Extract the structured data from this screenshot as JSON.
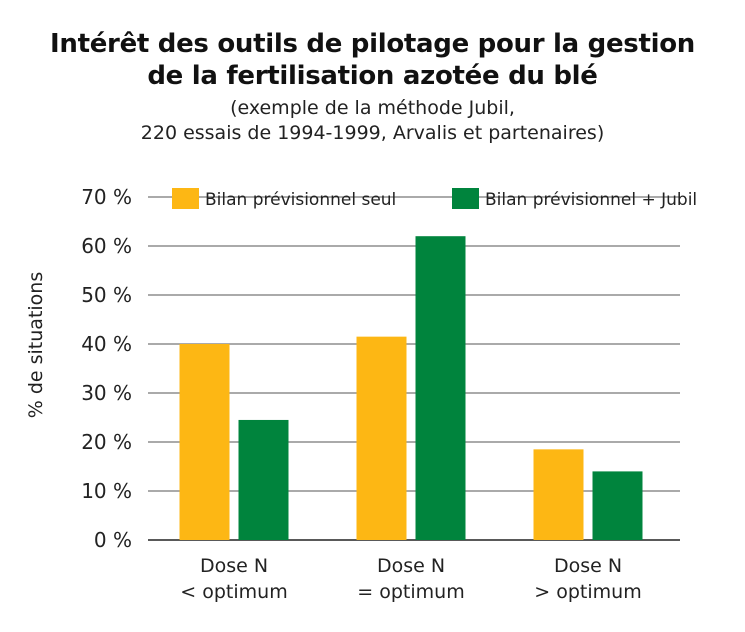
{
  "chart_data": {
    "type": "bar",
    "title_line1": "Intérêt des outils de pilotage pour la gestion",
    "title_line2": "de la fertilisation azotée du blé",
    "subtitle_line1": "(exemple de la méthode Jubil,",
    "subtitle_line2": "220 essais de 1994-1999, Arvalis et partenaires)",
    "ylabel": "% de situations",
    "xlabel": "",
    "ylim": [
      0,
      70
    ],
    "yticks": [
      0,
      10,
      20,
      30,
      40,
      50,
      60,
      70
    ],
    "ytick_labels": [
      "0 %",
      "10 %",
      "20 %",
      "30 %",
      "40 %",
      "50 %",
      "60 %",
      "70 %"
    ],
    "grid": true,
    "legend_position": "top",
    "categories": [
      {
        "line1": "Dose N",
        "line2": "< optimum"
      },
      {
        "line1": "Dose N",
        "line2": "= optimum"
      },
      {
        "line1": "Dose N",
        "line2": "> optimum"
      }
    ],
    "series": [
      {
        "name": "Bilan prévisionnel seul",
        "color": "#FDB714",
        "values": [
          40,
          41.5,
          18.5
        ]
      },
      {
        "name": "Bilan prévisionnel + Jubil",
        "color": "#00843D",
        "values": [
          24.5,
          62,
          14
        ]
      }
    ]
  }
}
